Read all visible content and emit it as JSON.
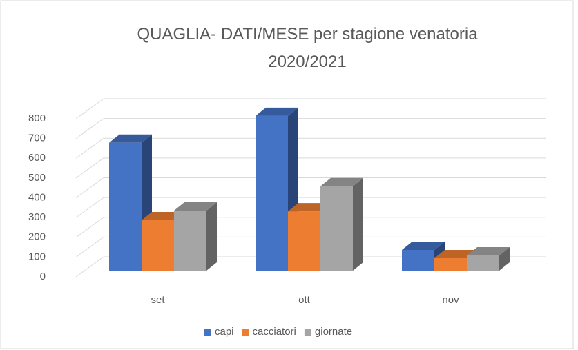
{
  "chart_data": {
    "type": "bar3d",
    "title": "QUAGLIA- DATI/MESE per stagione venatoria 2020/2021",
    "categories": [
      "set",
      "ott",
      "nov"
    ],
    "series": [
      {
        "name": "capi",
        "color": "#4472c4",
        "values": [
          647,
          783,
          105
        ]
      },
      {
        "name": "cacciatori",
        "color": "#ed7d31",
        "values": [
          255,
          300,
          63
        ]
      },
      {
        "name": "giornate",
        "color": "#a5a5a5",
        "values": [
          304,
          427,
          77
        ]
      }
    ],
    "ylim": [
      0,
      800
    ],
    "yticks": [
      0,
      100,
      200,
      300,
      400,
      500,
      600,
      700,
      800
    ],
    "grid": true,
    "legend": "bottom"
  }
}
